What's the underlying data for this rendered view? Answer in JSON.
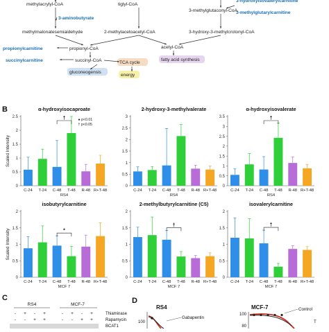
{
  "pathway": {
    "nodes": [
      {
        "id": "methylacrylyl",
        "text": "methylacrylyl-CoA",
        "kind": "metabolite"
      },
      {
        "id": "aminobutyrate",
        "text": "3-aminobutyrate",
        "kind": "marker"
      },
      {
        "id": "tiglyl",
        "text": "tiglyl-CoA",
        "kind": "metabolite"
      },
      {
        "id": "hydroxyisovaleryl",
        "text": "3-hydroxyisovalerylcarnitine",
        "kind": "marker"
      },
      {
        "id": "methylglutaryl",
        "text": "3-methylglutarylcarnitine",
        "kind": "marker"
      },
      {
        "id": "methylglutaconyl",
        "text": "3-methylglutaconyl-CoA",
        "kind": "metabolite"
      },
      {
        "id": "msa",
        "text": "methylmalonatesemialdehyde",
        "kind": "metabolite"
      },
      {
        "id": "mab",
        "text": "2-methylacetoacetyl-CoA",
        "kind": "metabolite"
      },
      {
        "id": "hmg",
        "text": "3-hydroxy-3-methylcrotonyl-CoA",
        "kind": "metabolite"
      },
      {
        "id": "propionylcarn",
        "text": "propionylcarnitine",
        "kind": "marker"
      },
      {
        "id": "propionyl",
        "text": "propionyl-CoA",
        "kind": "metabolite"
      },
      {
        "id": "acetyl",
        "text": "acetyl-CoA",
        "kind": "metabolite"
      },
      {
        "id": "succinylcarn",
        "text": "succinylcarnitine",
        "kind": "marker"
      },
      {
        "id": "succinyl",
        "text": "succinyl-CoA",
        "kind": "metabolite"
      },
      {
        "id": "tca",
        "text": "TCA cycle",
        "kind": "process-tca"
      },
      {
        "id": "fas",
        "text": "fatty acid synthesis",
        "kind": "process-fa"
      },
      {
        "id": "gng",
        "text": "gluconeogensis",
        "kind": "process-gng"
      },
      {
        "id": "energy",
        "text": "energy",
        "kind": "process-energy"
      }
    ]
  },
  "panel_b_label": "B",
  "panel_c_label": "C",
  "panel_d_label": "D",
  "legend": {
    "p01": "p<0.01",
    "p05": "p<0.05"
  },
  "significance_marks": {
    "dagger": "†",
    "star": "*"
  },
  "colors": {
    "C": "#2f8fe8",
    "T": "#2fcf3a",
    "R": "#b76cd8",
    "RT": "#f5a623",
    "marker_text": "#1a6fb5",
    "tca": "#f6dcc3",
    "fa": "#e5d5ee",
    "gng": "#cfe0f3",
    "energy": "#f7f0a8"
  },
  "chart_data": [
    {
      "type": "bar",
      "title": "α-hydroxyisocaproate",
      "categories": [
        "C-24",
        "T-24",
        "C-48",
        "T-48",
        "R-48",
        "R+T-48"
      ],
      "group_labels": [
        "RS4"
      ],
      "ylabel": "Scaled Intensity",
      "yticks": [
        "0",
        "0.5",
        "1",
        "1.5",
        "2",
        "2.5"
      ],
      "ylim": [
        0,
        2.5
      ],
      "values": [
        0.58,
        0.97,
        0.68,
        1.9,
        0.52,
        0.8
      ],
      "errors": [
        0.45,
        0.35,
        0.95,
        0.6,
        0.25,
        0.3
      ],
      "bar_colors": [
        "C",
        "T",
        "C",
        "T",
        "R",
        "RT"
      ],
      "significance": [
        {
          "from": 2,
          "to": 3,
          "mark": "dagger"
        }
      ]
    },
    {
      "type": "bar",
      "title": "2-hydroxy-3-methylvalerate",
      "categories": [
        "C-24",
        "T-24",
        "C-48",
        "T-48",
        "R-48",
        "R+T-48"
      ],
      "group_labels": [
        "RS4"
      ],
      "ylabel": "",
      "yticks": [
        "0",
        "0.5",
        "1",
        "1.5",
        "2",
        "2.5",
        "3"
      ],
      "ylim": [
        0,
        3
      ],
      "values": [
        0.62,
        0.68,
        0.88,
        2.15,
        0.74,
        0.7
      ],
      "errors": [
        0.2,
        0.15,
        1.6,
        0.5,
        0.15,
        0.15
      ],
      "bar_colors": [
        "C",
        "T",
        "C",
        "T",
        "R",
        "RT"
      ],
      "significance": []
    },
    {
      "type": "bar",
      "title": "α-hydroxyisovalerate",
      "categories": [
        "C-24",
        "T-24",
        "C-48",
        "T-48",
        "R-48",
        "R+T-48"
      ],
      "group_labels": [
        "RS4"
      ],
      "ylabel": "",
      "yticks": [
        "0",
        "0.5",
        "1",
        "1.5",
        "2",
        "2.5",
        "3",
        "3.5"
      ],
      "ylim": [
        0,
        3.5
      ],
      "values": [
        0.55,
        1.08,
        0.82,
        2.42,
        1.15,
        0.88
      ],
      "errors": [
        0.3,
        0.55,
        0.65,
        0.75,
        0.3,
        0.2
      ],
      "bar_colors": [
        "C",
        "T",
        "C",
        "T",
        "R",
        "RT"
      ],
      "significance": [
        {
          "from": 2,
          "to": 3,
          "mark": "dagger"
        }
      ]
    },
    {
      "type": "bar",
      "title": "isobutyrylcarnitine",
      "categories": [
        "C-24",
        "T-24",
        "C-48",
        "T-48",
        "R-48",
        "R+T-48"
      ],
      "group_labels": [
        "MCF 7"
      ],
      "ylabel": "Scaled Intensity",
      "yticks": [
        "0",
        "0.5",
        "1",
        "1.5",
        "2"
      ],
      "ylim": [
        0,
        2
      ],
      "values": [
        0.88,
        1.06,
        0.96,
        0.64,
        0.93,
        1.25
      ],
      "errors": [
        0.35,
        0.5,
        0.3,
        0.3,
        0.35,
        0.4
      ],
      "bar_colors": [
        "C",
        "T",
        "C",
        "T",
        "R",
        "RT"
      ],
      "significance": [
        {
          "from": 2,
          "to": 3,
          "mark": "star"
        }
      ]
    },
    {
      "type": "bar",
      "title": "2-methylbutyrylcarnitine (C5)",
      "categories": [
        "C-24",
        "T-24",
        "C-48",
        "T-48",
        "R-48",
        "R+T-48"
      ],
      "group_labels": [
        "MCF 7"
      ],
      "ylabel": "",
      "yticks": [
        "0",
        "0.5",
        "1",
        "1.5",
        "2"
      ],
      "ylim": [
        0,
        2
      ],
      "values": [
        1.22,
        1.28,
        1.14,
        0.63,
        0.58,
        0.64
      ],
      "errors": [
        0.3,
        0.55,
        0.28,
        0.15,
        0.08,
        0.1
      ],
      "bar_colors": [
        "C",
        "T",
        "C",
        "T",
        "R",
        "RT"
      ],
      "significance": [
        {
          "from": 2,
          "to": 3,
          "mark": "dagger"
        }
      ]
    },
    {
      "type": "bar",
      "title": "isovalerylcarnitine",
      "categories": [
        "C-24",
        "T-24",
        "C-48",
        "T-48",
        "R-48",
        "R+T-48"
      ],
      "group_labels": [
        "MCF 7"
      ],
      "ylabel": "",
      "yticks": [
        "0",
        "0.5",
        "1",
        "1.5",
        "2"
      ],
      "ylim": [
        0,
        2
      ],
      "values": [
        1.2,
        1.18,
        1.03,
        0.32,
        0.86,
        0.83
      ],
      "errors": [
        0.6,
        0.6,
        0.4,
        0.1,
        0.1,
        0.1
      ],
      "bar_colors": [
        "C",
        "T",
        "C",
        "T",
        "R",
        "RT"
      ],
      "significance": [
        {
          "from": 2,
          "to": 3,
          "mark": "dagger"
        }
      ]
    }
  ],
  "panel_c": {
    "cell_lines": [
      "RS4",
      "MCF-7"
    ],
    "row_labels": [
      "Thiaminase",
      "Rapamycin",
      "BCAT1"
    ],
    "row1": [
      "-",
      "+",
      "-",
      "+",
      "-",
      "+",
      "-",
      "+"
    ],
    "row2": [
      "-",
      "-",
      "+",
      "+",
      "-",
      "-",
      "+",
      "+"
    ]
  },
  "panel_d": {
    "subtitles": [
      "RS4",
      "MCF-7"
    ],
    "yticks_left": [
      "100"
    ],
    "yticks_right": [
      "100",
      "80"
    ],
    "curve_labels": [
      "Gabapentin",
      "Control",
      "T"
    ]
  }
}
